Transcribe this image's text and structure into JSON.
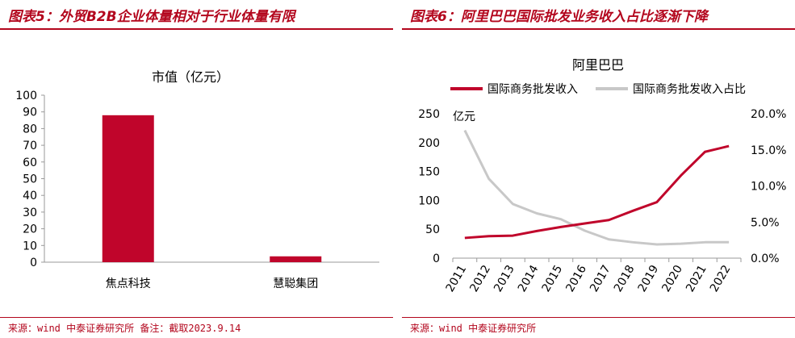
{
  "left": {
    "figure_title": "图表5：外贸B2B企业体量相对于行业体量有限",
    "source": "来源：wind 中泰证券研究所 备注：截取2023.9.14",
    "chart_data": {
      "type": "bar",
      "title": "市值（亿元）",
      "categories": [
        "焦点科技",
        "慧聪集团"
      ],
      "values": [
        88,
        3.5
      ],
      "ylim": [
        0,
        100
      ],
      "yticks": [
        "0",
        "10",
        "20",
        "30",
        "40",
        "50",
        "60",
        "70",
        "80",
        "90",
        "100"
      ],
      "color": "#c0052b",
      "grid": false
    }
  },
  "right": {
    "figure_title": "图表6：阿里巴巴国际批发业务收入占比逐渐下降",
    "source": "来源：wind 中泰证券研究所",
    "chart_data": {
      "type": "line",
      "title": "阿里巴巴",
      "y_unit": "亿元",
      "x": [
        "2011",
        "2012",
        "2013",
        "2014",
        "2015",
        "2016",
        "2017",
        "2018",
        "2019",
        "2020",
        "2021",
        "2022"
      ],
      "series": [
        {
          "name": "国际商务批发收入",
          "axis": "left",
          "color": "#c0052b",
          "values": [
            35,
            38,
            39,
            47,
            54,
            60,
            66,
            82,
            97,
            143,
            184,
            194
          ]
        },
        {
          "name": "国际商务批发收入占比",
          "axis": "right",
          "color": "#c8c8c8",
          "values": [
            17.7,
            11.0,
            7.5,
            6.2,
            5.4,
            3.8,
            2.6,
            2.2,
            1.9,
            2.0,
            2.2,
            2.2
          ]
        }
      ],
      "ylim_left": [
        0,
        250
      ],
      "yticks_left": [
        "0",
        "50",
        "100",
        "150",
        "200",
        "250"
      ],
      "ylim_right": [
        0,
        20
      ],
      "yticks_right": [
        "0.0%",
        "5.0%",
        "10.0%",
        "15.0%",
        "20.0%"
      ],
      "legend": "top",
      "grid": false
    }
  }
}
